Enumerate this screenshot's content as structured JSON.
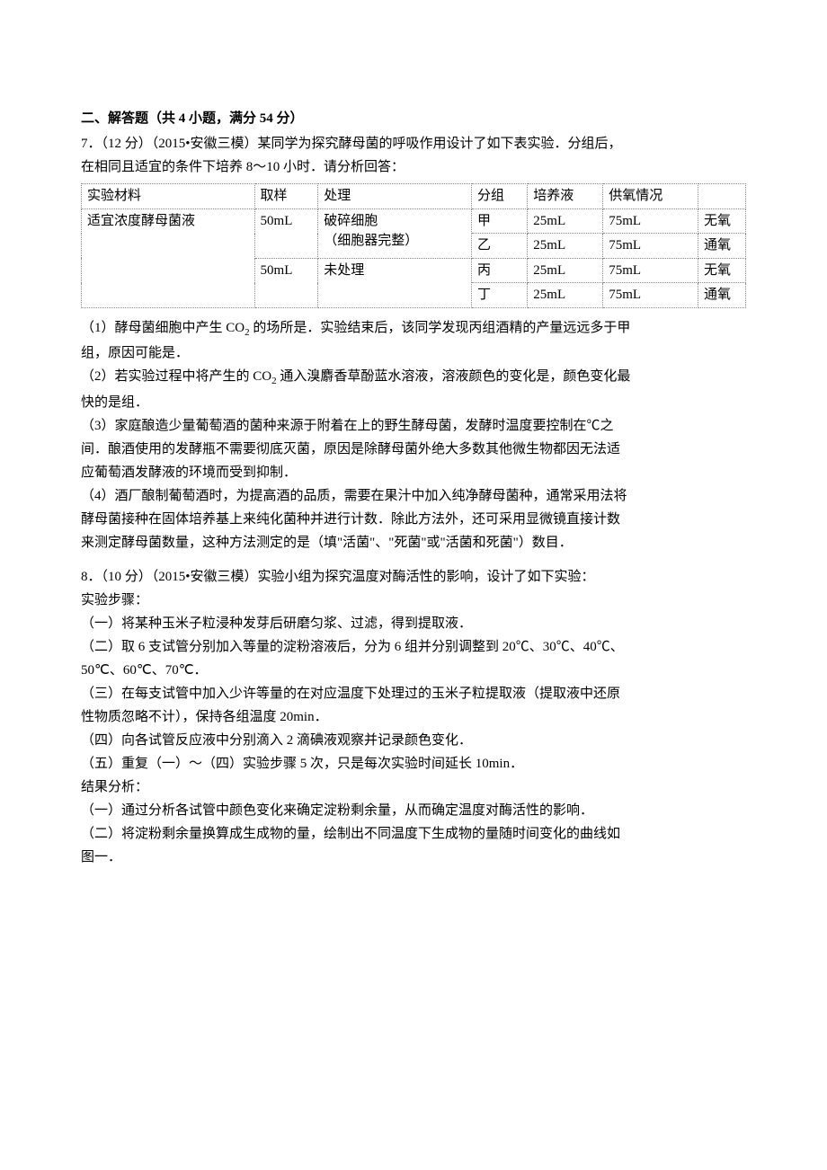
{
  "section_head": "二、解答题（共 4 小题，满分 54 分）",
  "q7": {
    "lead_a": "7．（12 分）（2015•安徽三模）某同学为探究酵母菌的呼吸作用设计了如下表实验．分组后，",
    "lead_b": "在相同且适宜的条件下培养 8～10 小时．请分析回答：",
    "table": {
      "headers": [
        "实验材料",
        "取样",
        "处理",
        "分组",
        "培养液",
        "供氧情况",
        ""
      ],
      "r1": {
        "c0": "适宜浓度酵母菌液",
        "c1": "50mL",
        "c2a": "破碎细胞",
        "c2b": "（细胞器完整）",
        "c3": "甲",
        "c4": "25mL",
        "c5": "75mL",
        "c6": "无氧"
      },
      "r2": {
        "c3": "乙",
        "c4": "25mL",
        "c5": "75mL",
        "c6": "通氧"
      },
      "r3": {
        "c1": "50mL",
        "c2": "未处理",
        "c3": "丙",
        "c4": "25mL",
        "c5": "75mL",
        "c6": "无氧"
      },
      "r4": {
        "c3": "丁",
        "c4": "25mL",
        "c5": "75mL",
        "c6": "通氧"
      }
    },
    "p1a": "（1）酵母菌细胞中产生 CO",
    "p1b": " 的场所是．实验结束后，该同学发现丙组酒精的产量远远多于甲",
    "p1c": "组，原因可能是．",
    "p2a": "（2）若实验过程中将产生的 CO",
    "p2b": " 通入溴麝香草酚蓝水溶液，溶液颜色的变化是，颜色变化最",
    "p2c": "快的是组．",
    "p3a": "（3）家庭酿造少量葡萄酒的菌种来源于附着在上的野生酵母菌，发酵时温度要控制在℃之",
    "p3b": "间．酿酒使用的发酵瓶不需要彻底灭菌，原因是除酵母菌外绝大多数其他微生物都因无法适",
    "p3c": "应葡萄酒发酵液的环境而受到抑制．",
    "p4a": "（4）酒厂酿制葡萄酒时，为提高酒的品质，需要在果汁中加入纯净酵母菌种，通常采用法将",
    "p4b": "酵母菌接种在固体培养基上来纯化菌种并进行计数．除此方法外，还可采用显微镜直接计数",
    "p4c": "来测定酵母菌数量，这种方法测定的是（填\"活菌\"、\"死菌\"或\"活菌和死菌\"）数目．"
  },
  "q8": {
    "lead": "8．（10 分）（2015•安徽三模）实验小组为探究温度对酶活性的影响，设计了如下实验：",
    "steps_label": "实验步骤：",
    "s1": "（一）将某种玉米子粒浸种发芽后研磨匀浆、过滤，得到提取液．",
    "s2a": "（二）取 6 支试管分别加入等量的淀粉溶液后，分为 6 组并分别调整到 20℃、30℃、40℃、",
    "s2b": "50℃、60℃、70℃．",
    "s3a": "（三）在每支试管中加入少许等量的在对应温度下处理过的玉米子粒提取液（提取液中还原",
    "s3b": "性物质忽略不计），保持各组温度 20min．",
    "s4": "（四）向各试管反应液中分别滴入 2 滴碘液观察并记录颜色变化．",
    "s5": "（五）重复（一）～（四）实验步骤 5 次，只是每次实验时间延长 10min．",
    "result_label": "结果分析：",
    "r1": "（一）通过分析各试管中颜色变化来确定淀粉剩余量，从而确定温度对酶活性的影响．",
    "r2a": "（二）将淀粉剩余量换算成生成物的量，绘制出不同温度下生成物的量随时间变化的曲线如",
    "r2b": "图一．"
  }
}
